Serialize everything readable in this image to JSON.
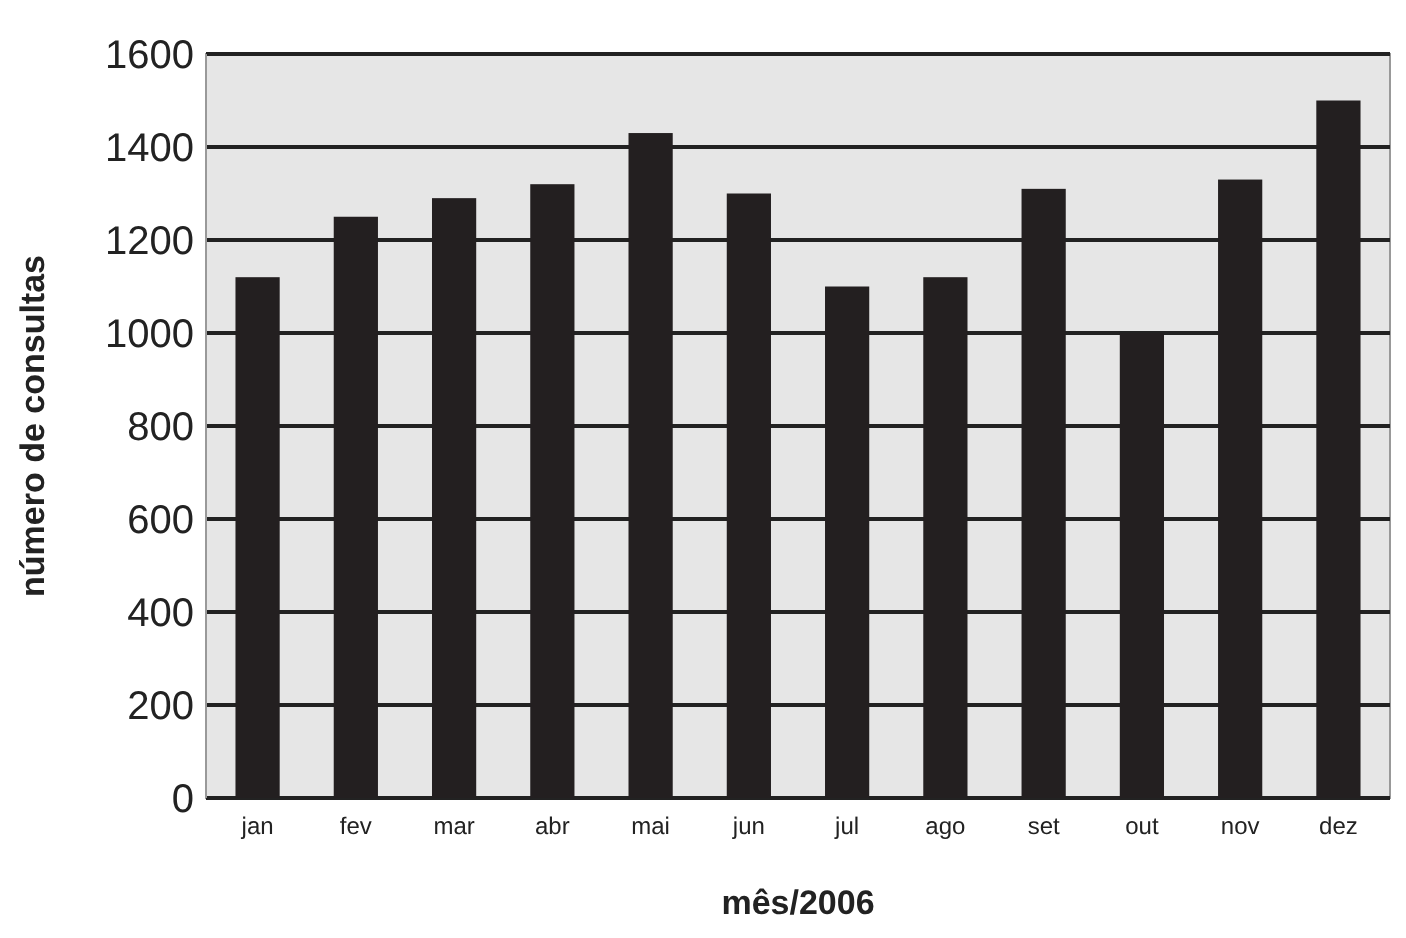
{
  "chart_data": {
    "type": "bar",
    "xlabel": "mês/2006",
    "ylabel": "número de consultas",
    "categories": [
      "jan",
      "fev",
      "mar",
      "abr",
      "mai",
      "jun",
      "jul",
      "ago",
      "set",
      "out",
      "nov",
      "dez"
    ],
    "values": [
      1120,
      1250,
      1290,
      1320,
      1430,
      1300,
      1100,
      1120,
      1310,
      1000,
      1330,
      1500
    ],
    "color": "#231f20",
    "ylim": [
      0,
      1600
    ],
    "yticks": [
      0,
      200,
      400,
      600,
      800,
      1000,
      1200,
      1400,
      1600
    ],
    "grid": "y"
  }
}
